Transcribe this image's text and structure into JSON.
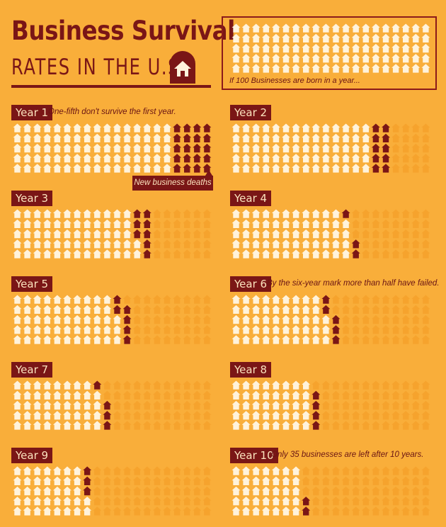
{
  "header": {
    "title": "Business Survival",
    "subtitle": "RATES IN THE U.S."
  },
  "legend": {
    "caption": "If 100 Businesses are born in a year..."
  },
  "deaths_label": "New business deaths",
  "colors": {
    "background": "#F9AE3A",
    "alive": "#FFF3DC",
    "dead_previous": "#F6A12C",
    "new_death": "#7A1616",
    "label_bg": "#7A1616"
  },
  "chart_data": {
    "type": "waffle",
    "units_per_panel": 100,
    "grid_rows": 5,
    "grid_cols": 20,
    "panels": [
      {
        "label": "Year 1",
        "survivors": 80,
        "new_deaths": 20,
        "annotation": "One-fifth don't survive the first year."
      },
      {
        "label": "Year 2",
        "survivors": 70,
        "new_deaths": 10,
        "annotation": ""
      },
      {
        "label": "Year 3",
        "survivors": 62,
        "new_deaths": 8,
        "annotation": ""
      },
      {
        "label": "Year 4",
        "survivors": 59,
        "new_deaths": 3,
        "annotation": ""
      },
      {
        "label": "Year 5",
        "survivors": 53,
        "new_deaths": 6,
        "annotation": ""
      },
      {
        "label": "Year 6",
        "survivors": 48,
        "new_deaths": 5,
        "annotation": "By the six-year mark more than half have failed."
      },
      {
        "label": "Year 7",
        "survivors": 44,
        "new_deaths": 4,
        "annotation": ""
      },
      {
        "label": "Year 8",
        "survivors": 40,
        "new_deaths": 4,
        "annotation": ""
      },
      {
        "label": "Year 9",
        "survivors": 37,
        "new_deaths": 3,
        "annotation": ""
      },
      {
        "label": "Year 10",
        "survivors": 35,
        "new_deaths": 2,
        "annotation": "Only 35 businesses are left after 10 years."
      }
    ]
  }
}
